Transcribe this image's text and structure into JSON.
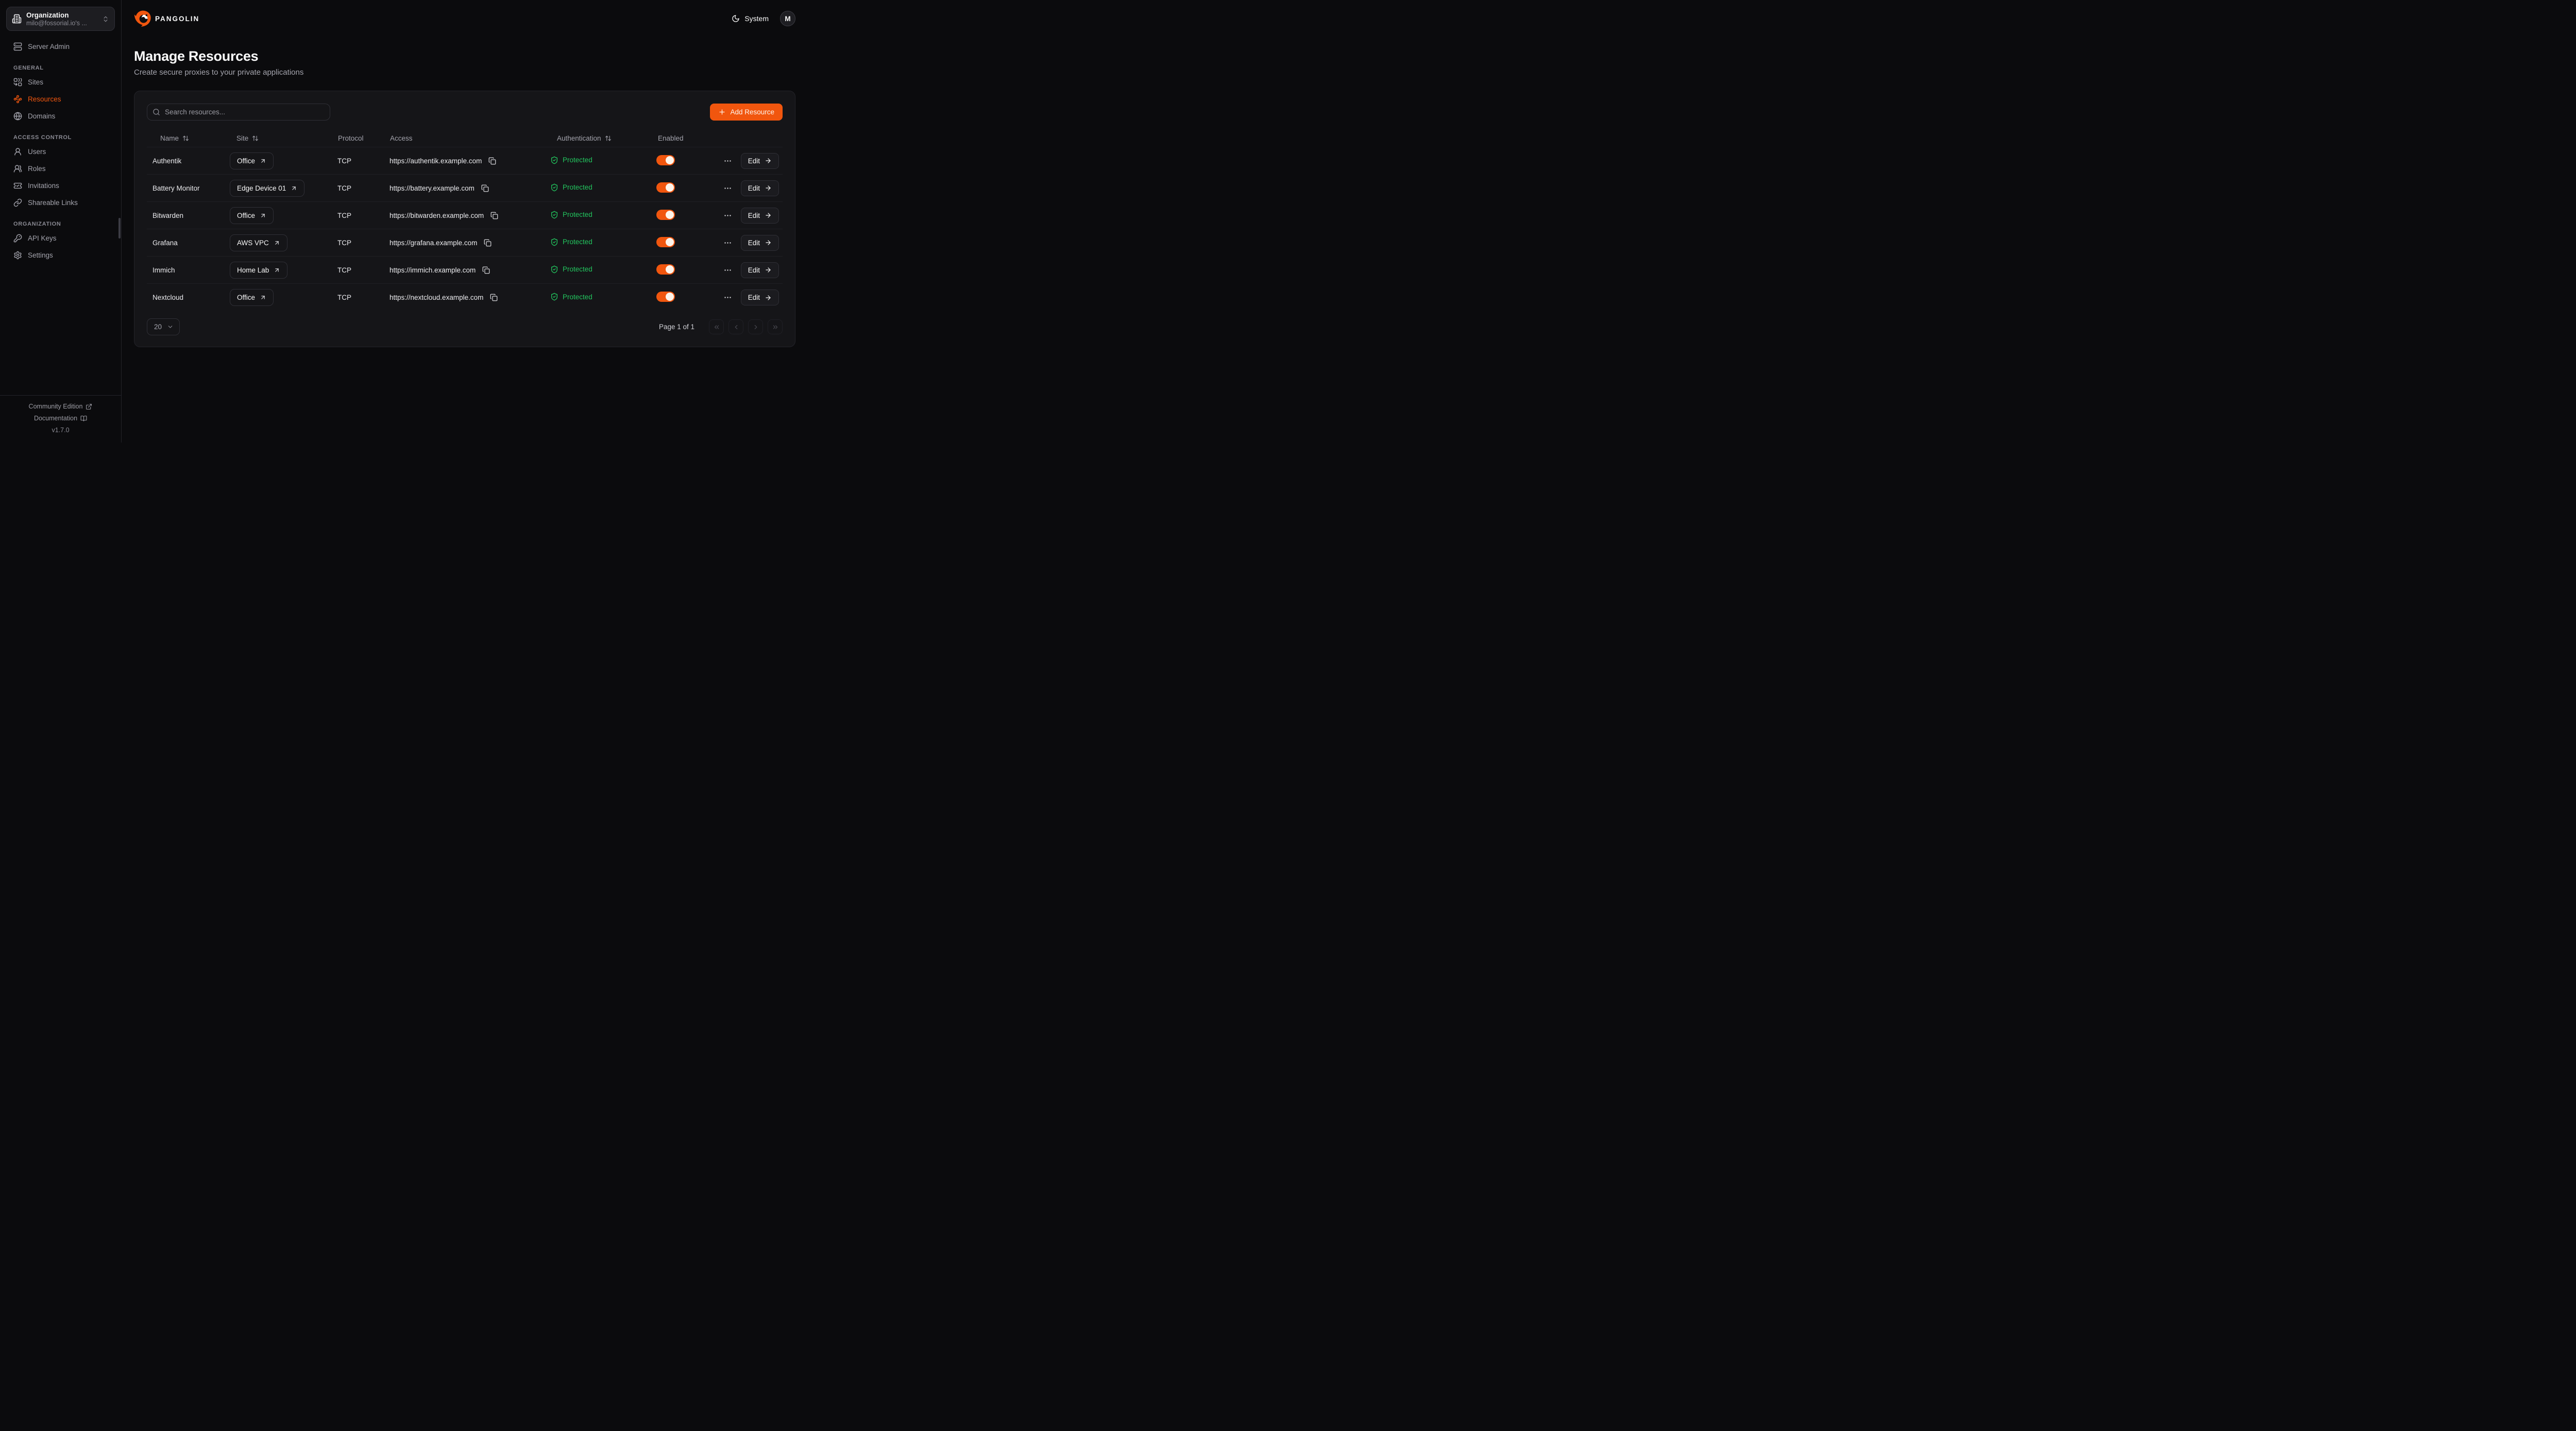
{
  "colors": {
    "accent": "#f1560e",
    "protected_green": "#22c55e"
  },
  "sidebar": {
    "org_selector": {
      "label": "Organization",
      "value": "milo@fossorial.io's ...",
      "icon": "building-icon",
      "chevron_icon": "chevrons-up-down-icon"
    },
    "top_items": [
      {
        "label": "Server Admin",
        "icon": "server-icon"
      }
    ],
    "sections": [
      {
        "label": "GENERAL",
        "items": [
          {
            "label": "Sites",
            "icon": "sites-icon",
            "active": false
          },
          {
            "label": "Resources",
            "icon": "waypoints-icon",
            "active": true
          },
          {
            "label": "Domains",
            "icon": "globe-icon",
            "active": false
          }
        ]
      },
      {
        "label": "ACCESS CONTROL",
        "items": [
          {
            "label": "Users",
            "icon": "user-icon",
            "active": false
          },
          {
            "label": "Roles",
            "icon": "users-icon",
            "active": false
          },
          {
            "label": "Invitations",
            "icon": "ticket-check-icon",
            "active": false
          },
          {
            "label": "Shareable Links",
            "icon": "link-icon",
            "active": false
          }
        ]
      },
      {
        "label": "ORGANIZATION",
        "items": [
          {
            "label": "API Keys",
            "icon": "key-icon",
            "active": false
          },
          {
            "label": "Settings",
            "icon": "gear-icon",
            "active": false
          }
        ]
      }
    ],
    "footer": {
      "community_edition": "Community Edition",
      "documentation": "Documentation",
      "version": "v1.7.0"
    }
  },
  "header": {
    "brand": "PANGOLIN",
    "theme_label": "System",
    "avatar_initial": "M"
  },
  "page": {
    "title": "Manage Resources",
    "subtitle": "Create secure proxies to your private applications"
  },
  "toolbar": {
    "search_placeholder": "Search resources...",
    "add_button_label": "Add Resource"
  },
  "table": {
    "edit_label": "Edit",
    "columns": [
      {
        "label": "Name",
        "sortable": true
      },
      {
        "label": "Site",
        "sortable": true
      },
      {
        "label": "Protocol",
        "sortable": false
      },
      {
        "label": "Access",
        "sortable": false
      },
      {
        "label": "Authentication",
        "sortable": true
      },
      {
        "label": "Enabled",
        "sortable": false
      }
    ],
    "rows": [
      {
        "name": "Authentik",
        "site": "Office",
        "protocol": "TCP",
        "access": "https://authentik.example.com",
        "authentication": "Protected",
        "enabled": true
      },
      {
        "name": "Battery Monitor",
        "site": "Edge Device 01",
        "protocol": "TCP",
        "access": "https://battery.example.com",
        "authentication": "Protected",
        "enabled": true
      },
      {
        "name": "Bitwarden",
        "site": "Office",
        "protocol": "TCP",
        "access": "https://bitwarden.example.com",
        "authentication": "Protected",
        "enabled": true
      },
      {
        "name": "Grafana",
        "site": "AWS VPC",
        "protocol": "TCP",
        "access": "https://grafana.example.com",
        "authentication": "Protected",
        "enabled": true
      },
      {
        "name": "Immich",
        "site": "Home Lab",
        "protocol": "TCP",
        "access": "https://immich.example.com",
        "authentication": "Protected",
        "enabled": true
      },
      {
        "name": "Nextcloud",
        "site": "Office",
        "protocol": "TCP",
        "access": "https://nextcloud.example.com",
        "authentication": "Protected",
        "enabled": true
      }
    ]
  },
  "pagination": {
    "page_size": "20",
    "page_status": "Page 1 of 1"
  }
}
